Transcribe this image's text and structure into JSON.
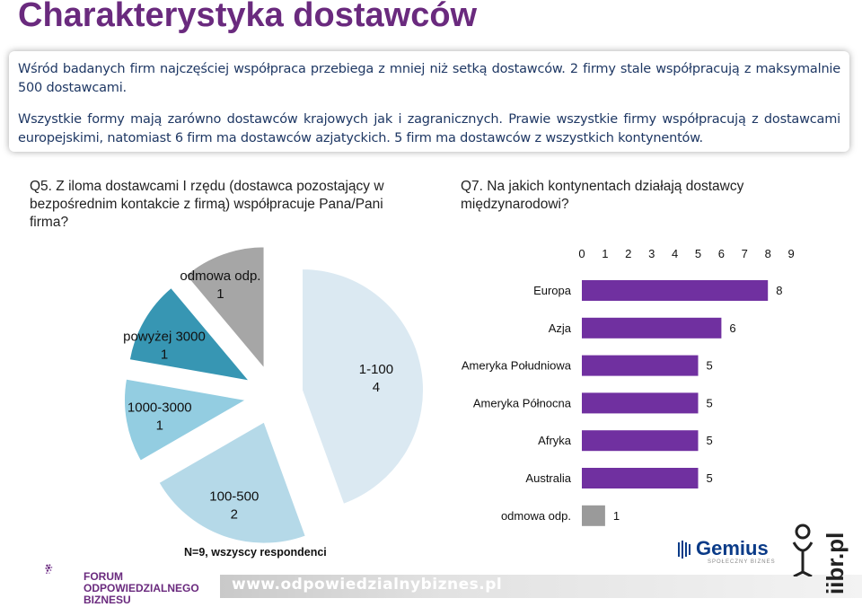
{
  "page": {
    "title": "Charakterystyka dostawców",
    "summary_1": "Wśród badanych firm najczęściej współpraca przebiega z mniej niż setką dostawców. 2 firmy stale współpracują z maksymalnie 500 dostawcami.",
    "summary_2": "Wszystkie formy mają zarówno dostawców krajowych jak i zagranicznych. Prawie wszystkie firmy współpracują z dostawcami europejskimi, natomiast 6 firm ma dostawców azjatyckich. 5 firm ma dostawców z wszystkich kontynentów.",
    "note": "N=9, wszyscy respondenci",
    "footer_url": "www.odpowiedzialnybiznes.pl",
    "forum_logo_text": [
      "FORUM",
      "ODPOWIEDZIALNEGO",
      "BIZNESU"
    ],
    "gemius_logo": "Gemius",
    "gemius_sub": "SPOŁECZNY BIZNES",
    "iibr_logo": "iibr.pl"
  },
  "chart_data": [
    {
      "type": "pie",
      "title": "Q5. Z iloma dostawcami I rzędu (dostawca pozostający w bezpośrednim kontakcie z firmą) współpracuje Pana/Pani firma?",
      "categories": [
        "1-100",
        "100-500",
        "1000-3000",
        "powyżej 3000",
        "odmowa odp."
      ],
      "values": [
        4,
        2,
        1,
        1,
        1
      ],
      "colors": [
        "#dbe9f2",
        "#b5d9e8",
        "#93cde1",
        "#3796b3",
        "#a6a6a6"
      ]
    },
    {
      "type": "bar",
      "orientation": "horizontal",
      "title": "Q7. Na jakich kontynentach działają dostawcy międzynarodowi?",
      "categories": [
        "Europa",
        "Azja",
        "Ameryka Południowa",
        "Ameryka Północna",
        "Afryka",
        "Australia",
        "odmowa odp."
      ],
      "values": [
        8,
        6,
        5,
        5,
        5,
        5,
        1
      ],
      "colors": [
        "#7030a0",
        "#7030a0",
        "#7030a0",
        "#7030a0",
        "#7030a0",
        "#7030a0",
        "#9a9a9a"
      ],
      "xlim": [
        0,
        9
      ],
      "xticks": [
        "0",
        "1",
        "2",
        "3",
        "4",
        "5",
        "6",
        "7",
        "8",
        "9"
      ],
      "axis_position": "top",
      "grid": false
    }
  ]
}
